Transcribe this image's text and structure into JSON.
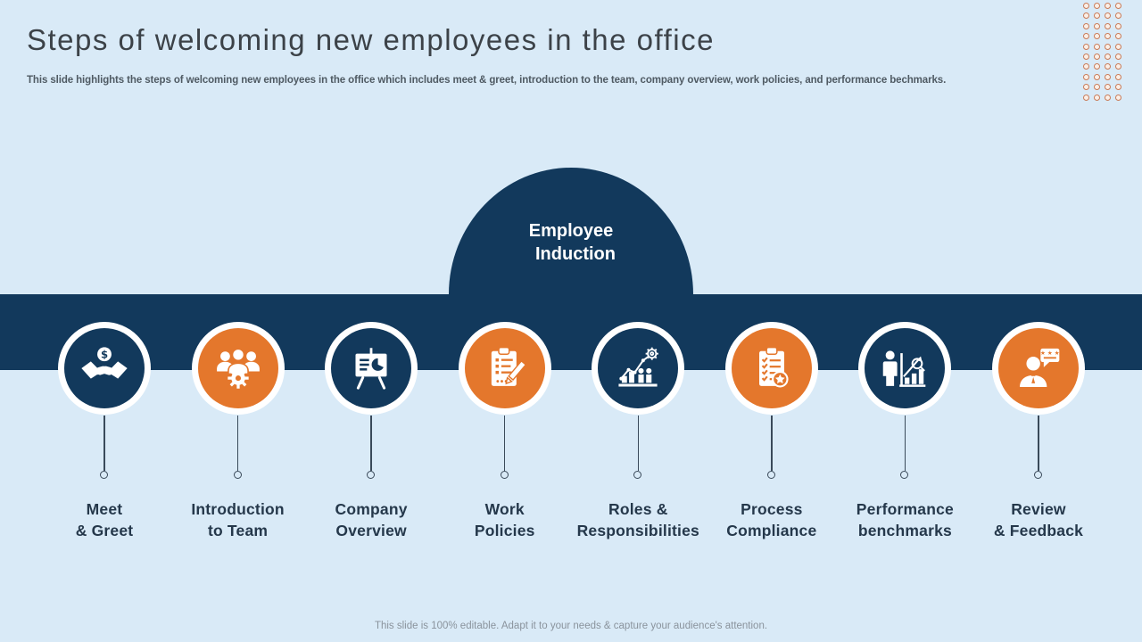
{
  "header": {
    "title": "Steps of welcoming new employees in the office",
    "subtitle": "This slide highlights the steps of welcoming new employees in the office which includes meet & greet, introduction to the team, company overview, work policies, and performance bechmarks."
  },
  "induction": {
    "line1": "Employee",
    "line2": "Induction"
  },
  "steps": [
    {
      "id": "meet-greet",
      "label_lines": [
        "Meet",
        "& Greet"
      ],
      "icon": "handshake-dollar-icon",
      "theme": "navy"
    },
    {
      "id": "introduction-to-team",
      "label_lines": [
        "Introduction",
        "to Team"
      ],
      "icon": "team-gear-icon",
      "theme": "orange"
    },
    {
      "id": "company-overview",
      "label_lines": [
        "Company",
        "Overview"
      ],
      "icon": "presentation-board-icon",
      "theme": "navy"
    },
    {
      "id": "work-policies",
      "label_lines": [
        "Work",
        "Policies"
      ],
      "icon": "clipboard-pencil-icon",
      "theme": "orange"
    },
    {
      "id": "roles-responsibilities",
      "label_lines": [
        "Roles &",
        "Responsibilities"
      ],
      "icon": "growth-chart-gear-icon",
      "theme": "navy"
    },
    {
      "id": "process-compliance",
      "label_lines": [
        "Process",
        "Compliance"
      ],
      "icon": "checklist-star-icon",
      "theme": "orange"
    },
    {
      "id": "performance-benchmarks",
      "label_lines": [
        "Performance",
        "benchmarks"
      ],
      "icon": "analytics-magnifier-icon",
      "theme": "navy"
    },
    {
      "id": "review-feedback",
      "label_lines": [
        "Review",
        "& Feedback"
      ],
      "icon": "feedback-person-icon",
      "theme": "orange"
    }
  ],
  "footer": {
    "note": "This slide is 100% editable. Adapt it to your needs & capture your audience's attention."
  },
  "colors": {
    "navy": "#12395C",
    "orange": "#E4772C",
    "background": "#D9EAF7",
    "title_text": "#3C4248",
    "subtitle_text": "#4F5A63",
    "label_text": "#25384B",
    "footer_text": "#8A939C",
    "dot_ring": "#C97B58",
    "connector": "#3A4A5A"
  },
  "decor": {
    "dots_rows": 10,
    "dots_cols": 4
  }
}
